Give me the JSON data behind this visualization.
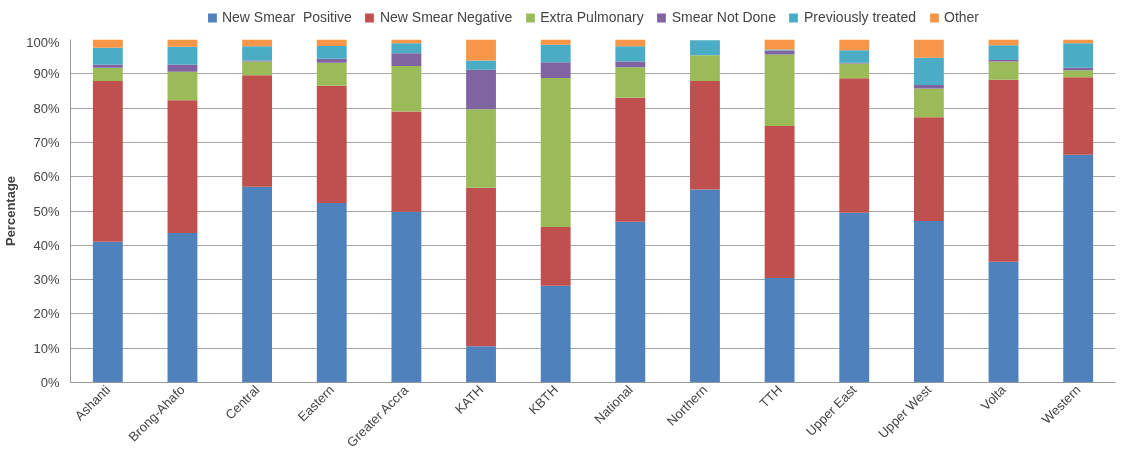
{
  "chart_data": {
    "type": "bar",
    "stacked": true,
    "ylabel": "Percentage",
    "categories": [
      "Ashanti",
      "Brong-Ahafo",
      "Central",
      "Eastern",
      "Greater Accra",
      "KATH",
      "KBTH",
      "National",
      "Northern",
      "TTH",
      "Upper East",
      "Upper West",
      "Volta",
      "Western"
    ],
    "series": [
      {
        "name": "New Smear  Positive",
        "color": "#4f81bd",
        "values": [
          41.0,
          43.6,
          57.1,
          52.3,
          49.8,
          10.6,
          28.2,
          46.9,
          56.3,
          30.5,
          49.5,
          47.1,
          35.2,
          66.4
        ]
      },
      {
        "name": "New Smear Negative",
        "color": "#c0504d",
        "values": [
          46.9,
          38.7,
          32.5,
          34.2,
          29.2,
          46.2,
          17.1,
          36.1,
          31.6,
          44.3,
          39.2,
          30.2,
          53.1,
          22.6
        ]
      },
      {
        "name": "Extra Pulmonary",
        "color": "#9bbb59",
        "values": [
          3.9,
          8.3,
          4.0,
          6.7,
          13.3,
          22.9,
          43.5,
          8.9,
          7.5,
          20.8,
          4.3,
          8.4,
          5.3,
          2.0
        ]
      },
      {
        "name": "Smear Not Done",
        "color": "#8064a2",
        "values": [
          0.9,
          2.1,
          0.3,
          1.2,
          3.7,
          11.5,
          4.6,
          1.7,
          null,
          1.2,
          0.2,
          1.0,
          0.4,
          0.8
        ]
      },
      {
        "name": "Previously treated",
        "color": "#4bacc6",
        "values": [
          4.9,
          5.2,
          4.1,
          3.7,
          2.9,
          2.7,
          5.1,
          4.4,
          4.4,
          0.3,
          3.7,
          8.0,
          4.3,
          7.1
        ]
      },
      {
        "name": "Other",
        "color": "#f79646",
        "values": [
          2.4,
          2.1,
          2.0,
          1.9,
          1.1,
          6.1,
          1.5,
          2.0,
          0.0,
          2.9,
          3.1,
          5.3,
          1.7,
          1.1
        ]
      }
    ],
    "ylim": [
      0,
      100
    ],
    "yticks": [
      {
        "value": 0,
        "label": "0%"
      },
      {
        "value": 10,
        "label": "10%"
      },
      {
        "value": 20,
        "label": "20%"
      },
      {
        "value": 30,
        "label": "30%"
      },
      {
        "value": 40,
        "label": "40%"
      },
      {
        "value": 50,
        "label": "50%"
      },
      {
        "value": 60,
        "label": "60%"
      },
      {
        "value": 70,
        "label": "70%"
      },
      {
        "value": 80,
        "label": "80%"
      },
      {
        "value": 90,
        "label": "90%"
      },
      {
        "value": 100,
        "label": "100%"
      }
    ],
    "grid": "y",
    "legend": "top"
  }
}
